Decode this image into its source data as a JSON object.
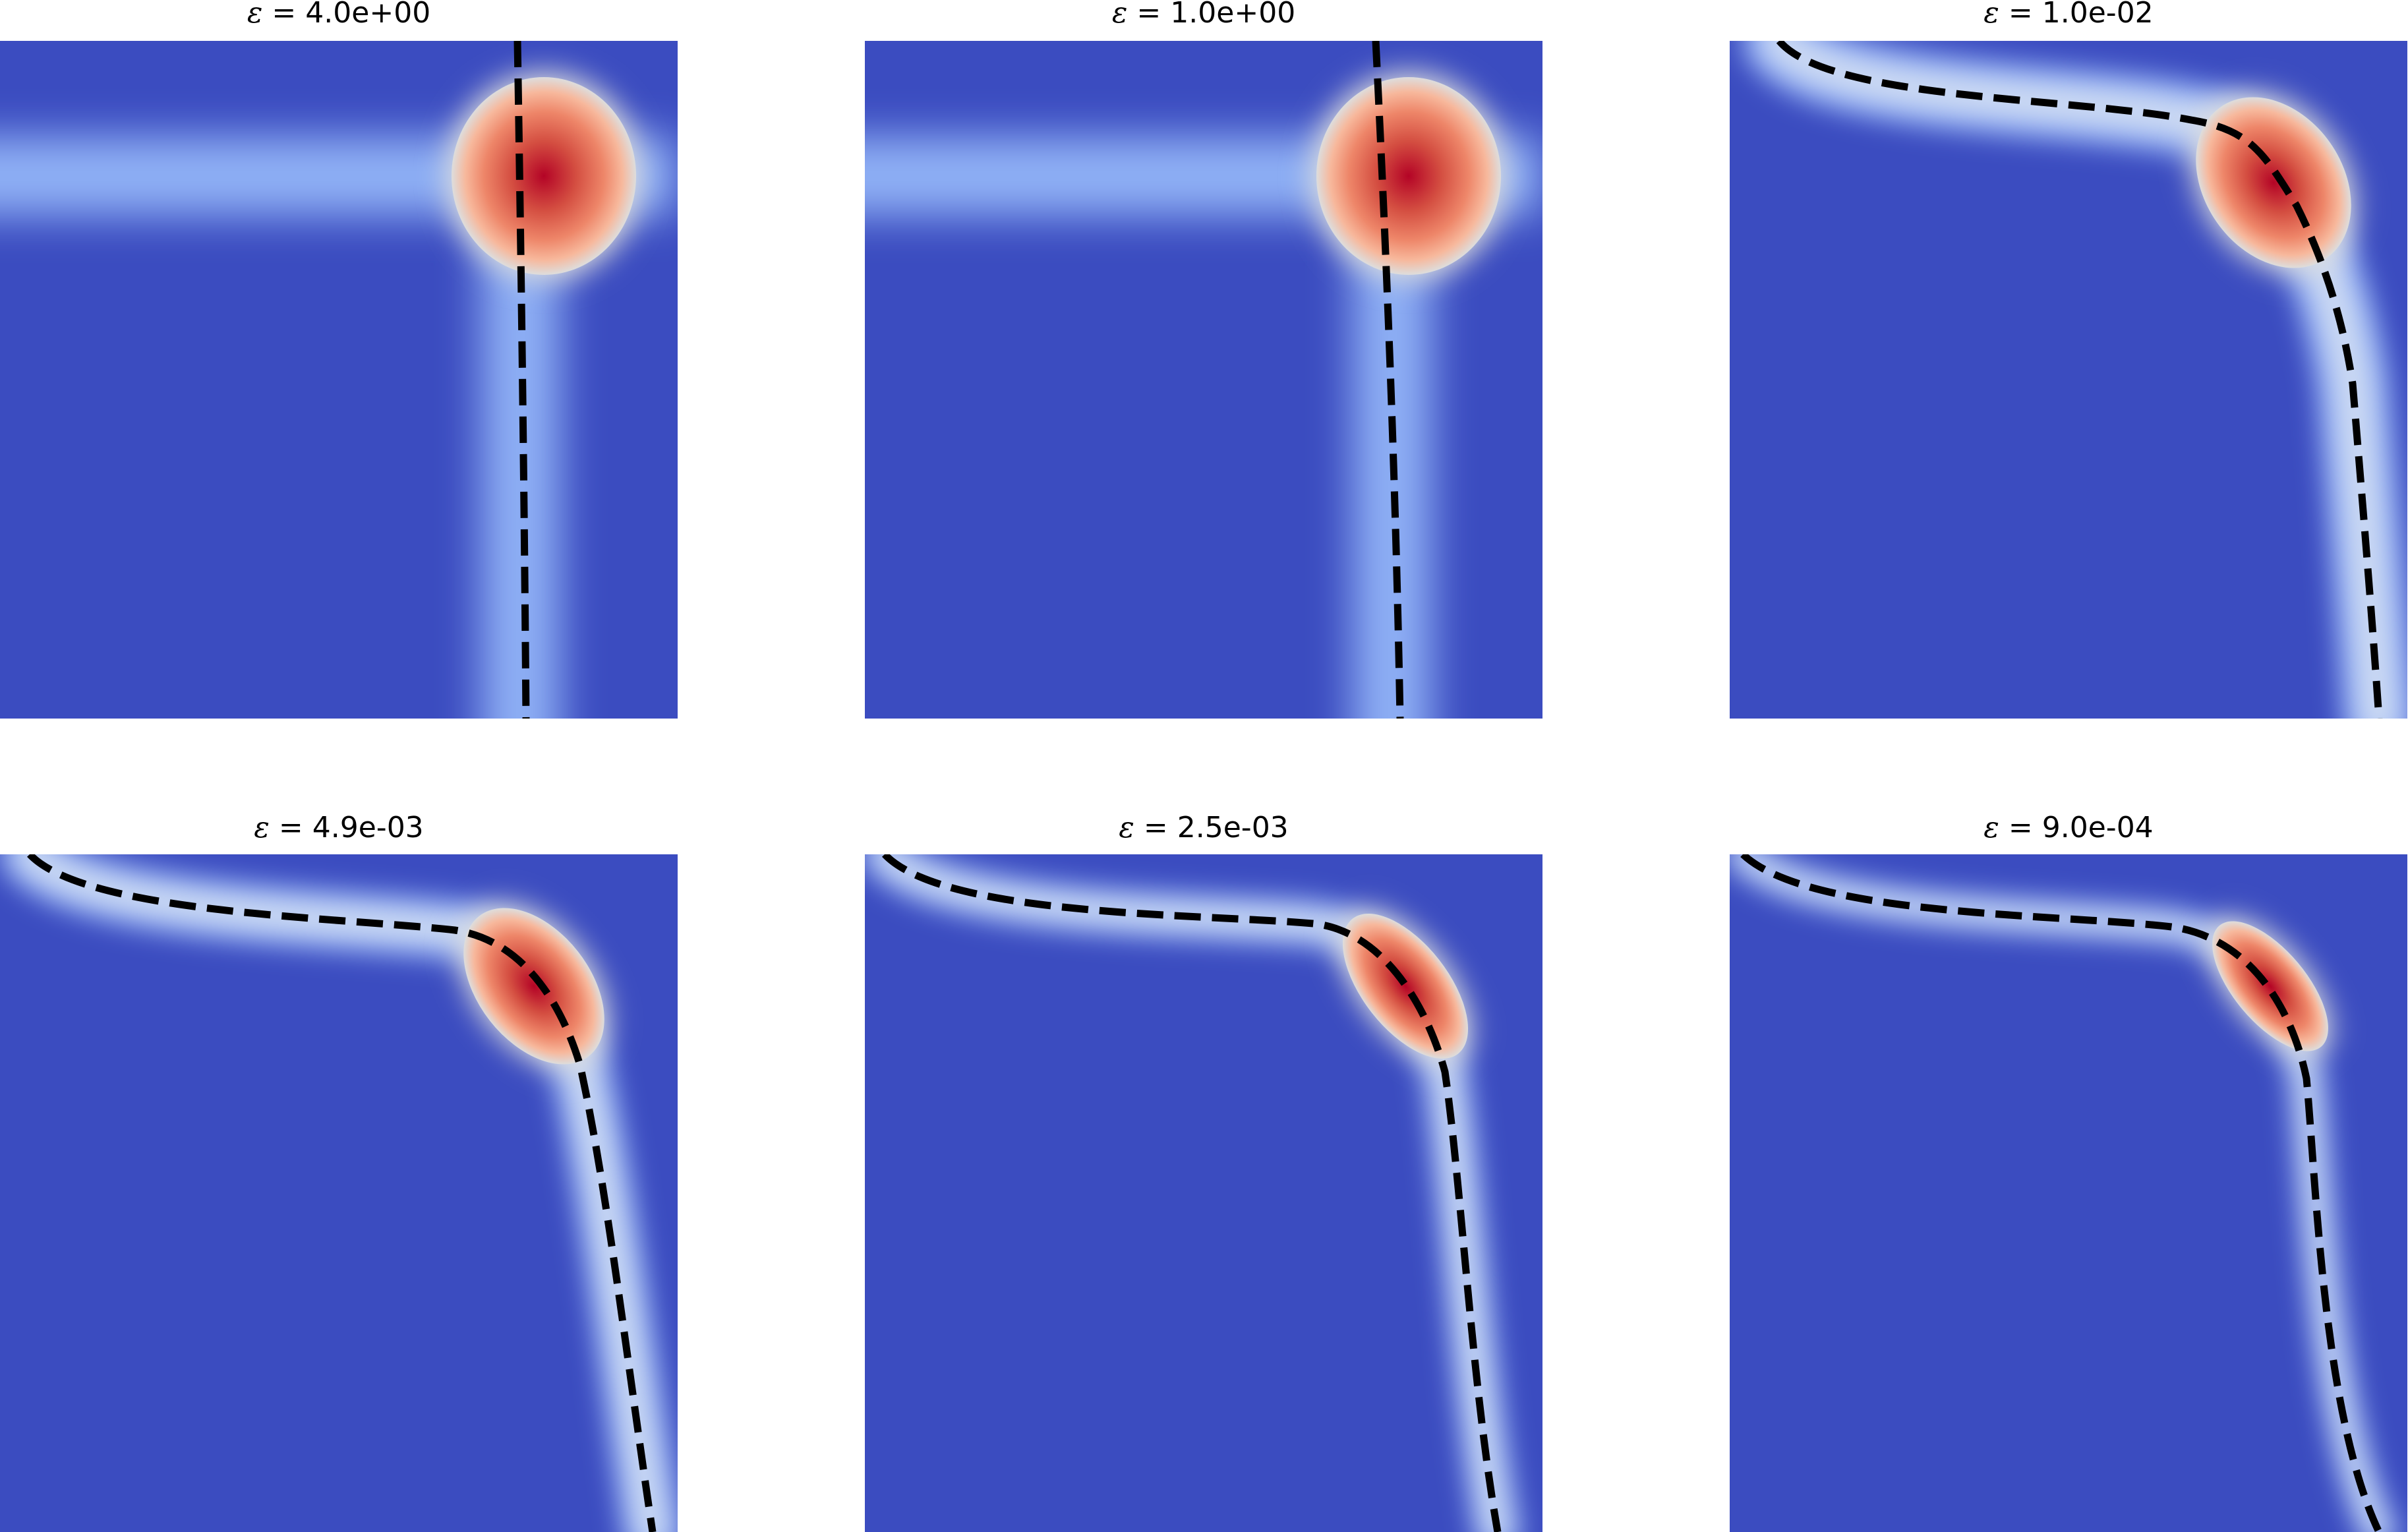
{
  "chart_data": [
    {
      "type": "heatmap",
      "title": "4.0e+00",
      "epsilon_symbol": "ε =",
      "epsilon": 4.0,
      "colormap": {
        "low": "#3b4cc0",
        "mid": "#dddddd",
        "high": "#b40426"
      },
      "xlabel": "",
      "ylabel": "",
      "grid": false
    },
    {
      "type": "heatmap",
      "title": "1.0e+00",
      "epsilon_symbol": "ε =",
      "epsilon": 1.0,
      "colormap": {
        "low": "#3b4cc0",
        "mid": "#dddddd",
        "high": "#b40426"
      },
      "xlabel": "",
      "ylabel": "",
      "grid": false
    },
    {
      "type": "heatmap",
      "title": "1.0e-02",
      "epsilon_symbol": "ε =",
      "epsilon": 0.01,
      "colormap": {
        "low": "#3b4cc0",
        "mid": "#dddddd",
        "high": "#b40426"
      },
      "xlabel": "",
      "ylabel": "",
      "grid": false
    },
    {
      "type": "heatmap",
      "title": "4.9e-03",
      "epsilon_symbol": "ε =",
      "epsilon": 0.0049,
      "colormap": {
        "low": "#3b4cc0",
        "mid": "#dddddd",
        "high": "#b40426"
      },
      "xlabel": "",
      "ylabel": "",
      "grid": false
    },
    {
      "type": "heatmap",
      "title": "2.5e-03",
      "epsilon_symbol": "ε =",
      "epsilon": 0.0025,
      "colormap": {
        "low": "#3b4cc0",
        "mid": "#dddddd",
        "high": "#b40426"
      },
      "xlabel": "",
      "ylabel": "",
      "grid": false
    },
    {
      "type": "heatmap",
      "title": "9.0e-04",
      "epsilon_symbol": "ε =",
      "epsilon": 0.0009,
      "colormap": {
        "low": "#3b4cc0",
        "mid": "#dddddd",
        "high": "#b40426"
      },
      "xlabel": "",
      "ylabel": "",
      "grid": false
    }
  ]
}
